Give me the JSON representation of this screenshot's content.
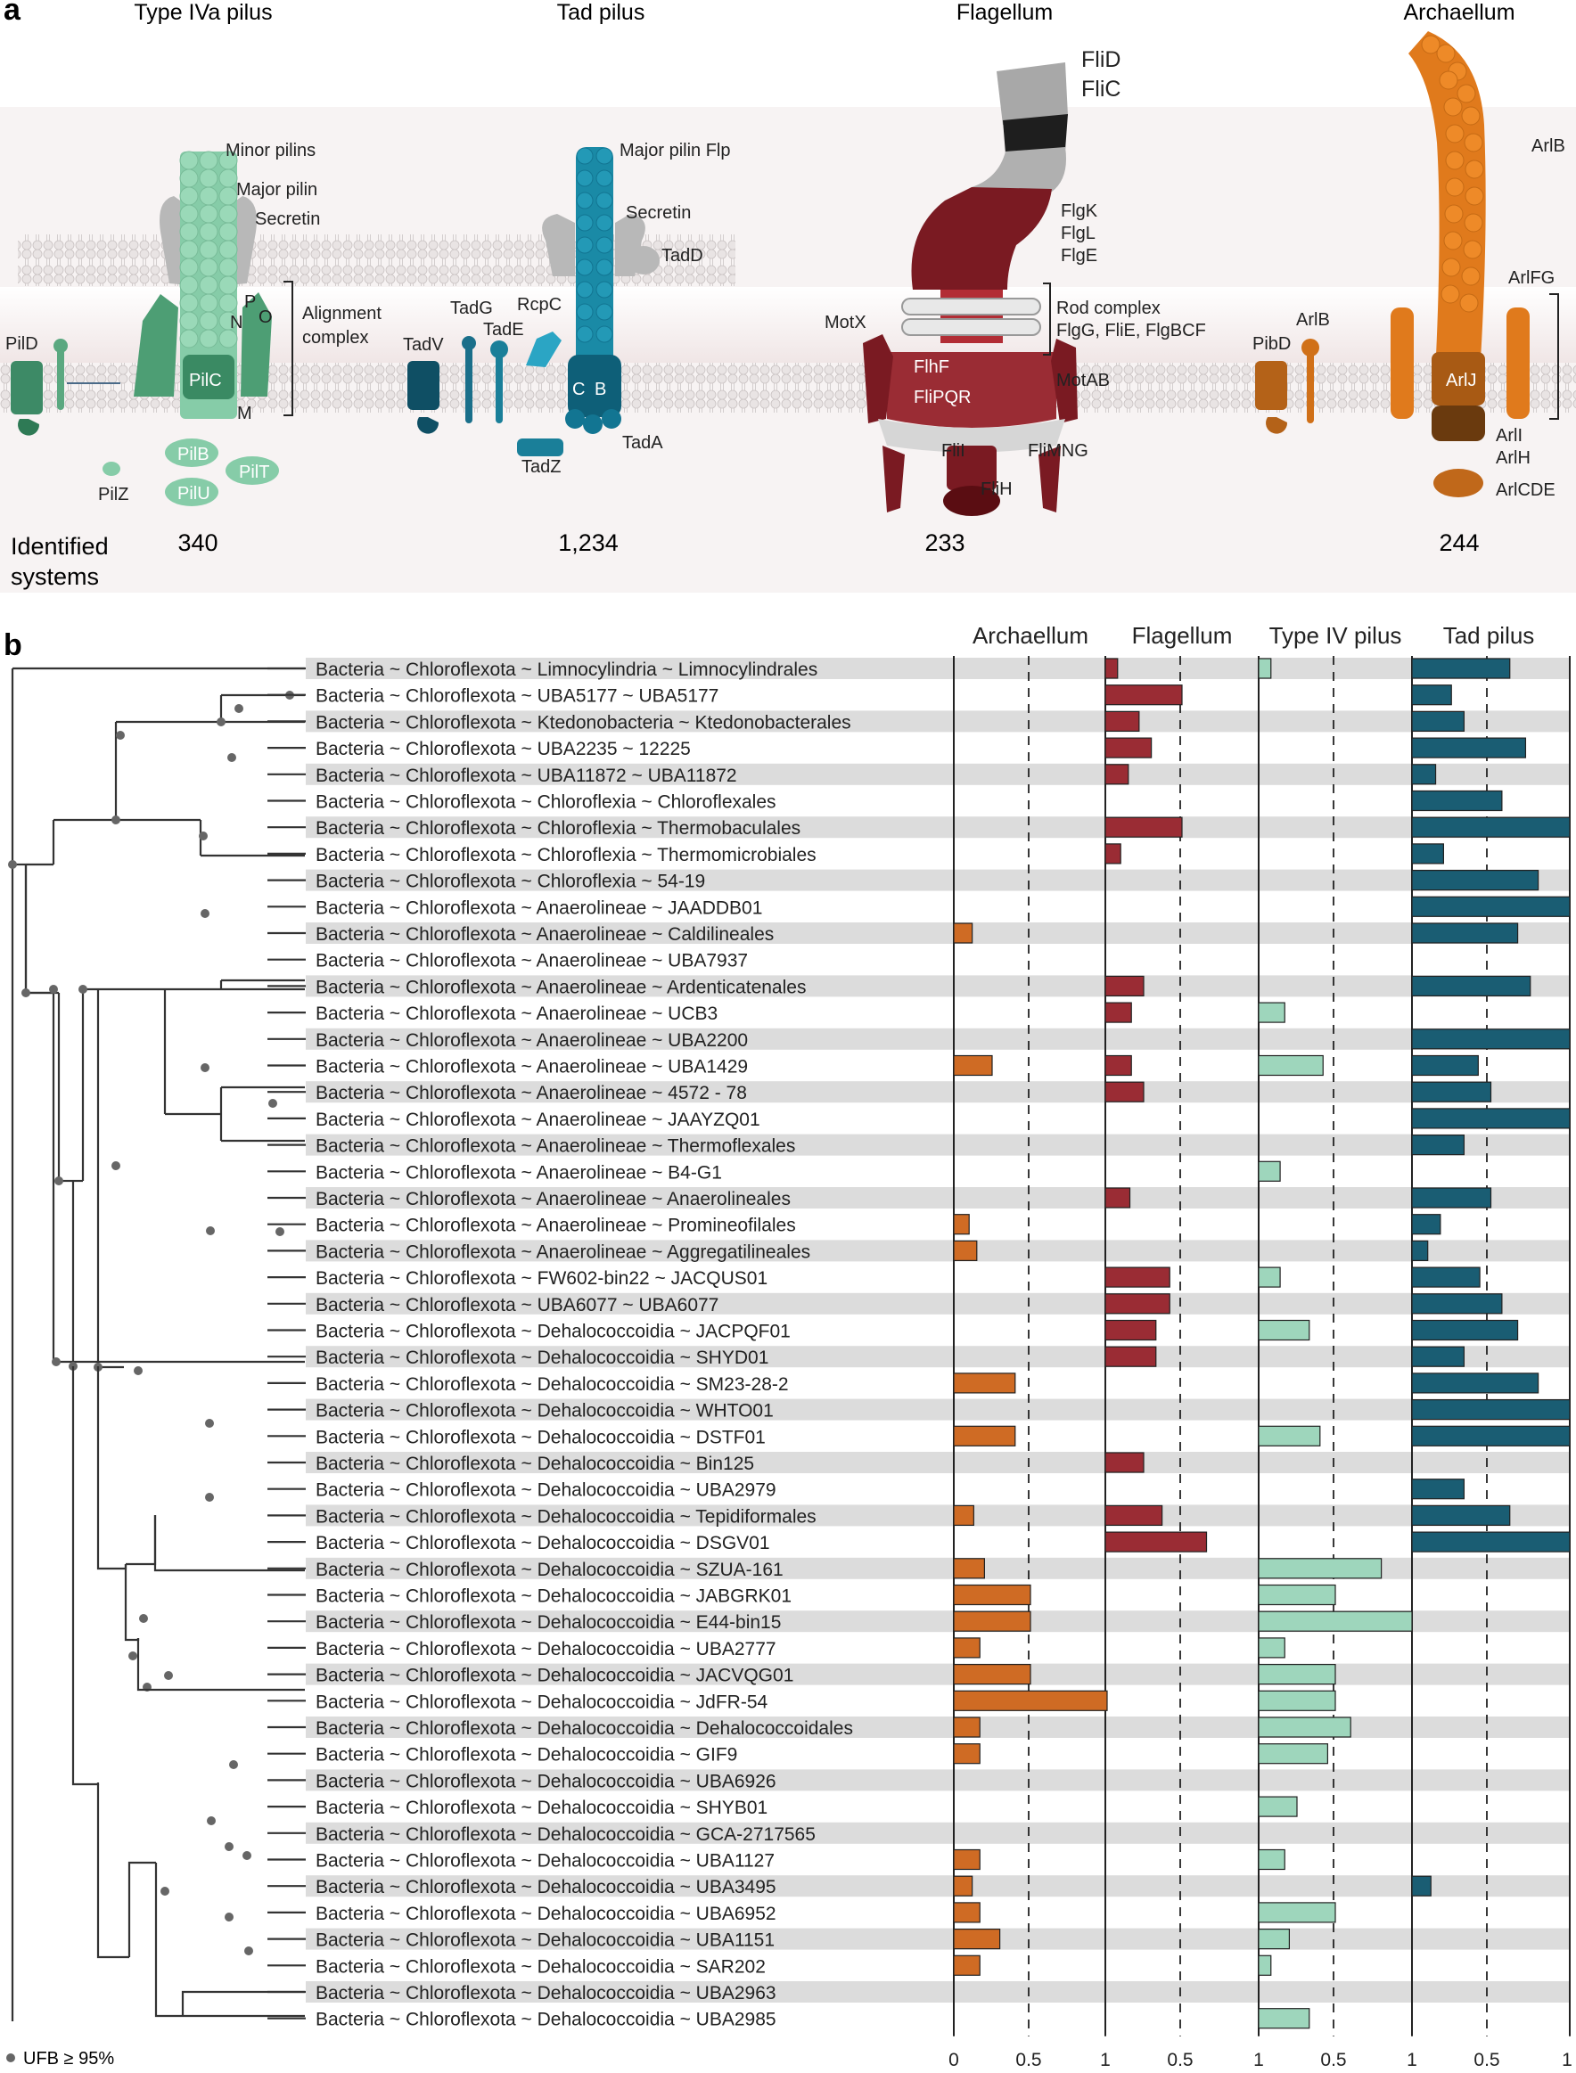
{
  "panel_a": {
    "label": "a",
    "systems": [
      {
        "title": "Type IVa pilus",
        "count": "340"
      },
      {
        "title": "Tad pilus",
        "count": "1,234"
      },
      {
        "title": "Flagellum",
        "count": "233"
      },
      {
        "title": "Archaellum",
        "count": "244"
      }
    ],
    "identified_label_1": "Identified",
    "identified_label_2": "systems",
    "labels": {
      "minor_pilins": "Minor pilins",
      "major_pilin": "Major pilin",
      "secretin": "Secretin",
      "alignment_1": "Alignment",
      "alignment_2": "complex",
      "pild": "PilD",
      "pilc": "PilC",
      "pilz": "PilZ",
      "pilb": "PilB",
      "pilu": "PilU",
      "pilt": "PilT",
      "p": "P",
      "n": "N",
      "o": "O",
      "m": "M",
      "major_pilin_flp": "Major pilin Flp",
      "secretin2": "Secretin",
      "tadd": "TadD",
      "tadv": "TadV",
      "tadg": "TadG",
      "tade": "TadE",
      "rcpc": "RcpC",
      "c": "C",
      "b": "B",
      "tadz": "TadZ",
      "tada": "TadA",
      "flid": "FliD",
      "flic": "FliC",
      "flgk": "FlgK",
      "flgl": "FlgL",
      "flge": "FlgE",
      "rod_1": "Rod complex",
      "rod_2": "FlgG, FliE, FlgBCF",
      "motx": "MotX",
      "flhf": "FlhF",
      "flipqr": "FliPQR",
      "motab": "MotAB",
      "flii": "FliI",
      "flimng": "FliMNG",
      "flih": "FliH",
      "arlb_top": "ArlB",
      "arlfg": "ArlFG",
      "pibd": "PibD",
      "arlb": "ArlB",
      "arlj": "ArlJ",
      "arli": "ArlI",
      "arlh": "ArlH",
      "arlcde": "ArlCDE"
    }
  },
  "panel_b": {
    "label": "b",
    "legend": "UFB ≥ 95%"
  },
  "chart_data": {
    "type": "bar",
    "title": "",
    "panels": [
      "Archaellum",
      "Flagellum",
      "Type IV pilus",
      "Tad pilus"
    ],
    "colors": [
      "#cf6b24",
      "#9a2c34",
      "#9ed6bc",
      "#1a5d73"
    ],
    "xlim": [
      0,
      1
    ],
    "xticks": [
      "0",
      "0.5",
      "1",
      "0.5",
      "1",
      "0.5",
      "1",
      "0.5",
      "1"
    ],
    "categories": [
      "Bacteria ~ Chloroflexota ~ Limnocylindria ~ Limnocylindrales",
      "Bacteria ~ Chloroflexota ~ UBA5177 ~ UBA5177",
      "Bacteria ~ Chloroflexota ~ Ktedonobacteria ~ Ktedonobacterales",
      "Bacteria ~ Chloroflexota ~ UBA2235 ~ 12225",
      "Bacteria ~ Chloroflexota ~ UBA11872 ~ UBA11872",
      "Bacteria ~ Chloroflexota ~ Chloroflexia ~ Chloroflexales",
      "Bacteria ~ Chloroflexota ~ Chloroflexia ~ Thermobaculales",
      "Bacteria ~ Chloroflexota ~ Chloroflexia ~ Thermomicrobiales",
      "Bacteria ~ Chloroflexota ~ Chloroflexia ~ 54-19",
      "Bacteria ~ Chloroflexota ~ Anaerolineae ~ JAADDB01",
      "Bacteria ~ Chloroflexota ~ Anaerolineae ~ Caldilineales",
      "Bacteria ~ Chloroflexota ~ Anaerolineae ~ UBA7937",
      "Bacteria ~ Chloroflexota ~ Anaerolineae ~ Ardenticatenales",
      "Bacteria ~ Chloroflexota ~ Anaerolineae ~ UCB3",
      "Bacteria ~ Chloroflexota ~ Anaerolineae ~ UBA2200",
      "Bacteria ~ Chloroflexota ~ Anaerolineae ~ UBA1429",
      "Bacteria ~ Chloroflexota ~ Anaerolineae ~ 4572 - 78",
      "Bacteria ~ Chloroflexota ~ Anaerolineae ~ JAAYZQ01",
      "Bacteria ~ Chloroflexota ~ Anaerolineae ~ Thermoflexales",
      "Bacteria ~ Chloroflexota ~ Anaerolineae ~ B4-G1",
      "Bacteria ~ Chloroflexota ~ Anaerolineae ~ Anaerolineales",
      "Bacteria ~ Chloroflexota ~ Anaerolineae ~ Promineofilales",
      "Bacteria ~ Chloroflexota ~ Anaerolineae ~ Aggregatilineales",
      "Bacteria ~ Chloroflexota ~ FW602-bin22 ~ JACQUS01",
      "Bacteria ~ Chloroflexota ~ UBA6077 ~ UBA6077",
      "Bacteria ~ Chloroflexota ~ Dehalococcoidia ~ JACPQF01",
      "Bacteria ~ Chloroflexota ~ Dehalococcoidia ~ SHYD01",
      "Bacteria ~ Chloroflexota ~ Dehalococcoidia ~ SM23-28-2",
      "Bacteria ~ Chloroflexota ~ Dehalococcoidia ~ WHTO01",
      "Bacteria ~ Chloroflexota ~ Dehalococcoidia ~ DSTF01",
      "Bacteria ~ Chloroflexota ~ Dehalococcoidia ~ Bin125",
      "Bacteria ~ Chloroflexota ~ Dehalococcoidia ~ UBA2979",
      "Bacteria ~ Chloroflexota ~ Dehalococcoidia ~ Tepidiformales",
      "Bacteria ~ Chloroflexota ~ Dehalococcoidia ~ DSGV01",
      "Bacteria ~ Chloroflexota ~ Dehalococcoidia ~ SZUA-161",
      "Bacteria ~ Chloroflexota ~ Dehalococcoidia ~ JABGRK01",
      "Bacteria ~ Chloroflexota ~ Dehalococcoidia ~ E44-bin15",
      "Bacteria ~ Chloroflexota ~ Dehalococcoidia ~ UBA2777",
      "Bacteria ~ Chloroflexota ~ Dehalococcoidia ~ JACVQG01",
      "Bacteria ~ Chloroflexota ~ Dehalococcoidia ~ JdFR-54",
      "Bacteria ~ Chloroflexota ~ Dehalococcoidia ~  Dehalococcoidales",
      "Bacteria ~ Chloroflexota ~ Dehalococcoidia ~ GIF9",
      "Bacteria ~ Chloroflexota ~ Dehalococcoidia ~ UBA6926",
      "Bacteria ~ Chloroflexota ~ Dehalococcoidia ~ SHYB01",
      "Bacteria ~ Chloroflexota ~ Dehalococcoidia ~ GCA-2717565",
      "Bacteria ~ Chloroflexota ~ Dehalococcoidia ~ UBA1127",
      "Bacteria ~ Chloroflexota ~ Dehalococcoidia ~ UBA3495",
      "Bacteria ~ Chloroflexota ~ Dehalococcoidia ~ UBA6952",
      "Bacteria ~ Chloroflexota ~ Dehalococcoidia ~ UBA1151",
      "Bacteria ~ Chloroflexota ~ Dehalococcoidia ~ SAR202",
      "Bacteria ~ Chloroflexota ~ Dehalococcoidia ~ UBA2963",
      "Bacteria ~ Chloroflexota ~ Dehalococcoidia ~ UBA2985"
    ],
    "series": [
      {
        "name": "Archaellum",
        "values": [
          0,
          0,
          0,
          0,
          0,
          0,
          0,
          0,
          0,
          0,
          0.12,
          0,
          0,
          0,
          0,
          0.25,
          0,
          0,
          0,
          0,
          0,
          0.1,
          0.15,
          0,
          0,
          0,
          0,
          0.4,
          0,
          0.4,
          0,
          0,
          0.13,
          0,
          0.2,
          0.5,
          0.5,
          0.17,
          0.5,
          1.0,
          0.17,
          0.17,
          0,
          0,
          0,
          0.17,
          0.12,
          0.17,
          0.3,
          0.17,
          0,
          0
        ]
      },
      {
        "name": "Flagellum",
        "values": [
          0.08,
          0.5,
          0.22,
          0.3,
          0.15,
          0,
          0.5,
          0.1,
          0,
          0,
          0,
          0,
          0.25,
          0.17,
          0,
          0.17,
          0.25,
          0,
          0,
          0,
          0.16,
          0,
          0,
          0.42,
          0.42,
          0.33,
          0.33,
          0,
          0,
          0,
          0.25,
          0,
          0.37,
          0.66,
          0,
          0,
          0,
          0,
          0,
          0,
          0,
          0,
          0,
          0,
          0,
          0,
          0,
          0,
          0,
          0,
          0,
          0
        ]
      },
      {
        "name": "Type IV pilus",
        "values": [
          0.08,
          0,
          0,
          0,
          0,
          0,
          0,
          0,
          0,
          0,
          0,
          0,
          0,
          0.17,
          0,
          0.42,
          0,
          0,
          0,
          0.14,
          0,
          0,
          0,
          0.14,
          0,
          0.33,
          0,
          0,
          0,
          0.4,
          0,
          0,
          0,
          0,
          0.8,
          0.5,
          1.0,
          0.17,
          0.5,
          0.5,
          0.6,
          0.45,
          0,
          0.25,
          0,
          0.17,
          0,
          0.5,
          0.2,
          0.08,
          0,
          0.33
        ]
      },
      {
        "name": "Tad pilus",
        "values": [
          0.62,
          0.25,
          0.33,
          0.72,
          0.15,
          0.57,
          1.0,
          0.2,
          0.8,
          1.0,
          0.67,
          0,
          0.75,
          0,
          1.0,
          0.42,
          0.5,
          1.0,
          0.33,
          0,
          0.5,
          0.18,
          0.1,
          0.43,
          0.57,
          0.67,
          0.33,
          0.8,
          1.0,
          1.0,
          0,
          0.33,
          0.62,
          1.0,
          0,
          0,
          0,
          0,
          0,
          0,
          0,
          0,
          0,
          0,
          0,
          0,
          0.12,
          0,
          0,
          0,
          0,
          0
        ]
      }
    ]
  }
}
